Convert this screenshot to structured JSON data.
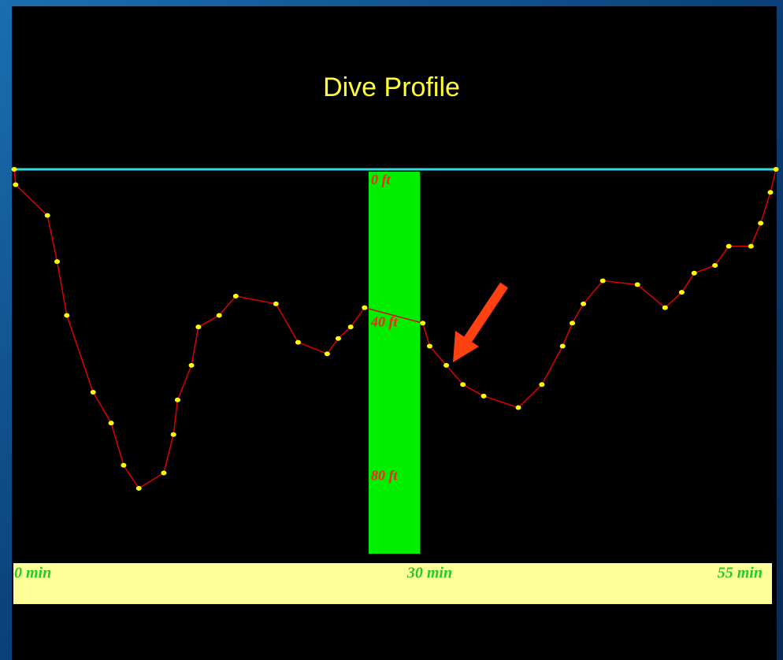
{
  "chart_data": {
    "type": "line",
    "title": "Dive Profile",
    "x": [
      0,
      0.1,
      2.4,
      3.1,
      3.8,
      5.7,
      7,
      7.9,
      9,
      10.8,
      11.5,
      11.8,
      12.8,
      13.3,
      14.8,
      16,
      18.9,
      20.5,
      22.6,
      23.4,
      24.3,
      25.3,
      29.5,
      30,
      31.2,
      32.4,
      33.9,
      36.4,
      38.1,
      39.6,
      40.3,
      41.1,
      42.5,
      45,
      47,
      48.2,
      49.1,
      50.6,
      51.6,
      53.2,
      53.9,
      54.6,
      55
    ],
    "values": [
      0,
      4,
      12,
      24,
      38,
      58,
      66,
      77,
      83,
      79,
      69,
      60,
      51,
      41,
      38,
      33,
      35,
      45,
      48,
      44,
      41,
      36,
      40,
      46,
      51,
      56,
      59,
      62,
      56,
      46,
      40,
      35,
      29,
      30,
      36,
      32,
      27,
      25,
      20,
      20,
      14,
      6,
      0
    ],
    "color": "#dd0000",
    "marker_color": "#ffff00",
    "xlim": [
      0,
      55
    ],
    "xticks": [
      {
        "value": 0,
        "label": "0 min"
      },
      {
        "value": 30,
        "label": "30 min"
      },
      {
        "value": 55,
        "label": "55 min"
      }
    ],
    "ylim": [
      0,
      100
    ],
    "y_inverted": true,
    "yticks": [
      {
        "value": 0,
        "label": "0 ft"
      },
      {
        "value": 40,
        "label": "40 ft"
      },
      {
        "value": 80,
        "label": "80 ft"
      }
    ]
  }
}
